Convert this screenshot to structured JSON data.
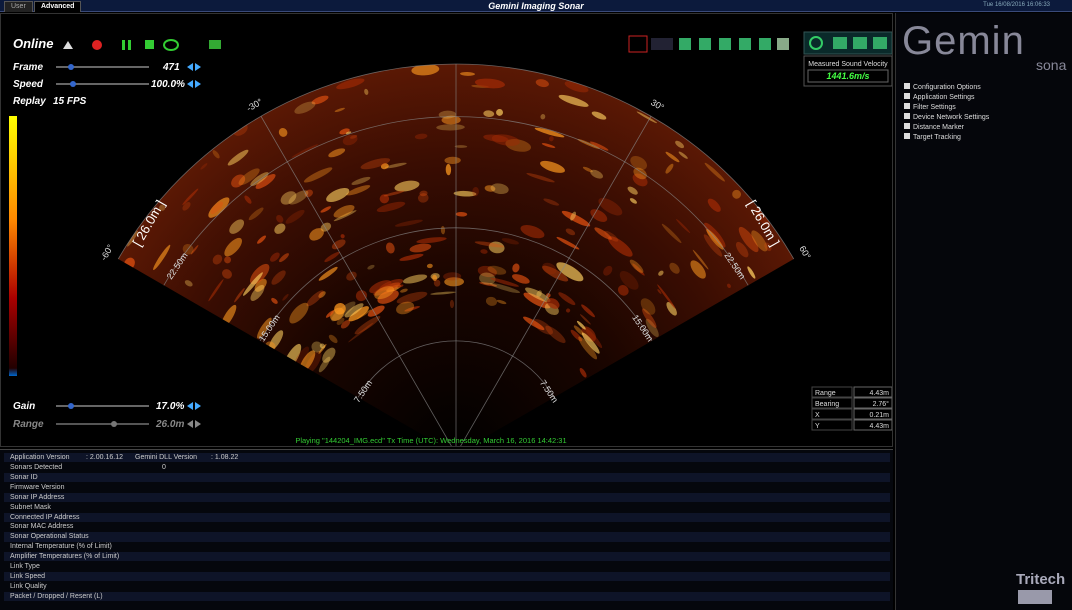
{
  "header": {
    "tabs": [
      "User",
      "Advanced"
    ],
    "title": "Gemini Imaging Sonar",
    "datetime": "Tue 16/08/2016 16:06:33"
  },
  "controls": {
    "mode": "Online",
    "frame": {
      "label": "Frame",
      "value": "471"
    },
    "speed": {
      "label": "Speed",
      "value": "100.0%"
    },
    "replay": {
      "label": "Replay",
      "value": "15 FPS"
    },
    "gain": {
      "label": "Gain",
      "value": "17.0%"
    },
    "range": {
      "label": "Range",
      "value": "26.0m"
    }
  },
  "sonar": {
    "range_rings": [
      "7.50m",
      "15.00m",
      "22.50m"
    ],
    "range_label": "[ 26.0m ]",
    "bearings": [
      "-60°",
      "-30°",
      "30°",
      "60°"
    ]
  },
  "sound_velocity": {
    "label": "Measured Sound Velocity",
    "value": "1441.6m/s"
  },
  "readout": [
    [
      "Range",
      "4.43m"
    ],
    [
      "Bearing",
      "2.76°"
    ],
    [
      "X",
      "0.21m"
    ],
    [
      "Y",
      "4.43m"
    ]
  ],
  "status": "Playing \"144204_IMG.ecd\" Tx Time (UTC): Wednesday, March 16, 2016 14:42:31",
  "logo": {
    "brand": "Gemin",
    "sub": "sona",
    "maker": "Tritech"
  },
  "menu": [
    "Configuration Options",
    "Application Settings",
    "Filter Settings",
    "Device Network Settings",
    "Distance Marker",
    "Target Tracking"
  ],
  "info": {
    "versions": [
      [
        "Application Version",
        ": 2.00.16.12"
      ],
      [
        "Gemini DLL Version",
        ": 1.08.22"
      ]
    ],
    "rows": [
      [
        "Sonars Detected",
        "0"
      ],
      [
        "Sonar ID"
      ],
      [
        "Firmware Version"
      ],
      [
        "Sonar IP Address"
      ],
      [
        "Subnet Mask"
      ],
      [
        "Connected IP Address"
      ],
      [
        "Sonar MAC Address"
      ],
      [
        "Sonar Operational Status"
      ],
      [
        "Internal Temperature (% of Limit)"
      ],
      [
        "Amplifier Temperatures (% of Limit)"
      ],
      [
        "Link Type"
      ],
      [
        "Link Speed"
      ],
      [
        "Link Quality"
      ],
      [
        "Packet / Dropped / Resent (L)"
      ]
    ]
  }
}
